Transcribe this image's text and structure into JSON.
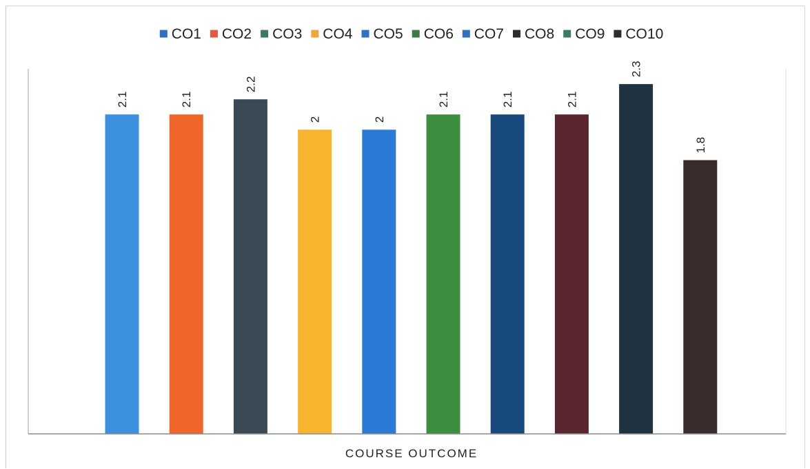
{
  "chart_data": {
    "type": "bar",
    "title": "",
    "xlabel": "COURSE OUTCOME",
    "ylabel": "",
    "ylim": [
      0,
      2.4
    ],
    "grid": false,
    "legend_position": "top",
    "series": [
      {
        "name": "CO1",
        "value": 2.1,
        "label": "2.1",
        "color": "#3d8fe0"
      },
      {
        "name": "CO2",
        "value": 2.1,
        "label": "2.1",
        "color": "#f0662a"
      },
      {
        "name": "CO3",
        "value": 2.2,
        "label": "2.2",
        "color": "#3a4a55"
      },
      {
        "name": "CO4",
        "value": 2.0,
        "label": "2",
        "color": "#f7b52e"
      },
      {
        "name": "CO5",
        "value": 2.0,
        "label": "2",
        "color": "#2b7bd6"
      },
      {
        "name": "CO6",
        "value": 2.1,
        "label": "2.1",
        "color": "#3d8f3f"
      },
      {
        "name": "CO7",
        "value": 2.1,
        "label": "2.1",
        "color": "#184a7e"
      },
      {
        "name": "CO8",
        "value": 2.1,
        "label": "2.1",
        "color": "#5a2630"
      },
      {
        "name": "CO9",
        "value": 2.3,
        "label": "2.3",
        "color": "#1f3340"
      },
      {
        "name": "CO10",
        "value": 1.8,
        "label": "1.8",
        "color": "#3a2c2c"
      }
    ],
    "legend_colors": [
      "#2f6fc4",
      "#e8573f",
      "#3b7a5a",
      "#f2a53b",
      "#2f6fc4",
      "#3b7a4a",
      "#2f6fc4",
      "#2d2d2d",
      "#3b7a6a",
      "#2d2d2d"
    ]
  }
}
